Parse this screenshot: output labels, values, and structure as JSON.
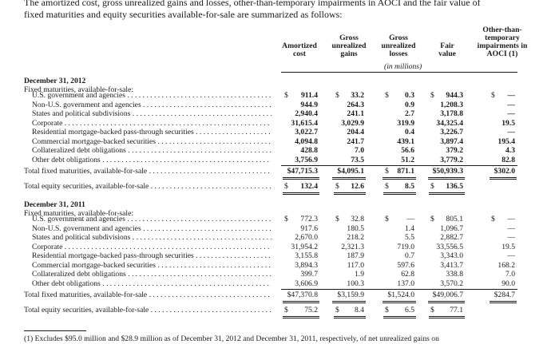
{
  "intro": {
    "line1": "The amortized cost, gross unrealized gains and losses, other-than-temporary impairments in AOCI and the fair value of",
    "line2": "fixed maturities and equity securities available-for-sale are summarized as follows:"
  },
  "headers": {
    "amortized_cost": [
      "Amortized",
      "cost"
    ],
    "gross_gains": [
      "Gross",
      "unrealized",
      "gains"
    ],
    "gross_losses": [
      "Gross",
      "unrealized",
      "losses"
    ],
    "fair_value": [
      "Fair",
      "value"
    ],
    "otti": [
      "Other-than-",
      "temporary",
      "impairments in",
      "AOCI (1)"
    ],
    "unit": "(in millions)"
  },
  "sections": [
    {
      "date": "December 31, 2012",
      "subheading": "Fixed maturities, available-for-sale:",
      "rows": [
        {
          "label": "U.S. government and agencies",
          "cost": "911.4",
          "gains": "33.2",
          "losses": "0.3",
          "fair": "944.3",
          "otti": "—",
          "dollar": true
        },
        {
          "label": "Non-U.S. government and agencies",
          "cost": "944.9",
          "gains": "264.3",
          "losses": "0.9",
          "fair": "1,208.3",
          "otti": "—"
        },
        {
          "label": "States and political subdivisions",
          "cost": "2,940.4",
          "gains": "241.1",
          "losses": "2.7",
          "fair": "3,178.8",
          "otti": "—"
        },
        {
          "label": "Corporate",
          "cost": "31,615.4",
          "gains": "3,029.9",
          "losses": "319.9",
          "fair": "34,325.4",
          "otti": "19.5"
        },
        {
          "label": "Residential mortgage-backed pass-through securities",
          "cost": "3,022.7",
          "gains": "204.4",
          "losses": "0.4",
          "fair": "3,226.7",
          "otti": "—"
        },
        {
          "label": "Commercial mortgage-backed securities",
          "cost": "4,094.8",
          "gains": "241.7",
          "losses": "439.1",
          "fair": "3,897.4",
          "otti": "195.4"
        },
        {
          "label": "Collateralized debt obligations",
          "cost": "428.8",
          "gains": "7.0",
          "losses": "56.6",
          "fair": "379.2",
          "otti": "4.3"
        },
        {
          "label": "Other debt obligations",
          "cost": "3,756.9",
          "gains": "73.5",
          "losses": "51.2",
          "fair": "3,779.2",
          "otti": "82.8"
        }
      ],
      "total_fixed": {
        "label": "Total fixed maturities, available-for-sale",
        "cost": "$47,715.3",
        "gains": "$4,095.1",
        "losses": "871.1",
        "fair": "$50,939.3",
        "otti": "$302.0"
      },
      "total_equity": {
        "label": "Total equity securities, available-for-sale",
        "cost": "132.4",
        "gains": "12.6",
        "losses": "8.5",
        "fair": "136.5"
      }
    },
    {
      "date": "December 31, 2011",
      "subheading": "Fixed maturities, available-for-sale:",
      "rows": [
        {
          "label": "U.S. government and agencies",
          "cost": "772.3",
          "gains": "32.8",
          "losses": "—",
          "fair": "805.1",
          "otti": "—",
          "dollar": true
        },
        {
          "label": "Non-U.S. government and agencies",
          "cost": "917.6",
          "gains": "180.5",
          "losses": "1.4",
          "fair": "1,096.7",
          "otti": "—"
        },
        {
          "label": "States and political subdivisions",
          "cost": "2,670.0",
          "gains": "218.2",
          "losses": "5.5",
          "fair": "2,882.7",
          "otti": "—"
        },
        {
          "label": "Corporate",
          "cost": "31,954.2",
          "gains": "2,321.3",
          "losses": "719.0",
          "fair": "33,556.5",
          "otti": "19.5"
        },
        {
          "label": "Residential mortgage-backed pass-through securities",
          "cost": "3,155.8",
          "gains": "187.9",
          "losses": "0.7",
          "fair": "3,343.0",
          "otti": "—"
        },
        {
          "label": "Commercial mortgage-backed securities",
          "cost": "3,894.3",
          "gains": "117.0",
          "losses": "597.6",
          "fair": "3,413.7",
          "otti": "168.2"
        },
        {
          "label": "Collateralized debt obligations",
          "cost": "399.7",
          "gains": "1.9",
          "losses": "62.8",
          "fair": "338.8",
          "otti": "7.0"
        },
        {
          "label": "Other debt obligations",
          "cost": "3,606.9",
          "gains": "100.3",
          "losses": "137.0",
          "fair": "3,570.2",
          "otti": "90.0"
        }
      ],
      "total_fixed": {
        "label": "Total fixed maturities, available-for-sale",
        "cost": "$47,370.8",
        "gains": "$3,159.9",
        "losses": "$1,524.0",
        "fair": "$49,006.7",
        "otti": "$284.7"
      },
      "total_equity": {
        "label": "Total equity securities, available-for-sale",
        "cost": "75.2",
        "gains": "8.4",
        "losses": "6.5",
        "fair": "77.1"
      }
    }
  ],
  "footnote": "(1)  Excludes $95.0 million and $28.9 million as of December 31, 2012 and December 31, 2011, respectively, of net unrealized gains on"
}
